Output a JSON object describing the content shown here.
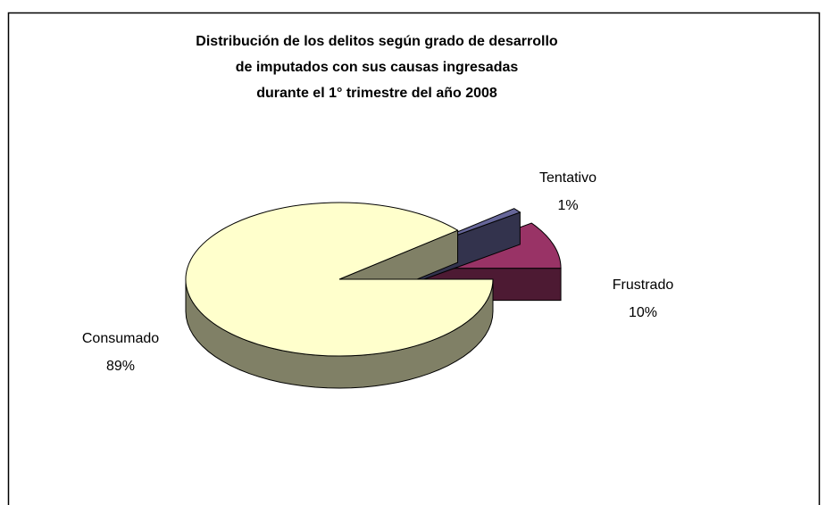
{
  "chart_data": {
    "type": "pie3d",
    "title": [
      "Distribución de los delitos según grado de desarrollo",
      "de imputados con sus causas ingresadas",
      "durante el 1° trimestre del año 2008"
    ],
    "categories": [
      "Frustrado",
      "Tentativo",
      "Consumado"
    ],
    "values": [
      10,
      1,
      89
    ],
    "value_labels": [
      "10%",
      "1%",
      "89%"
    ],
    "colors": [
      "#993366",
      "#666699",
      "#FFFFCC"
    ]
  }
}
